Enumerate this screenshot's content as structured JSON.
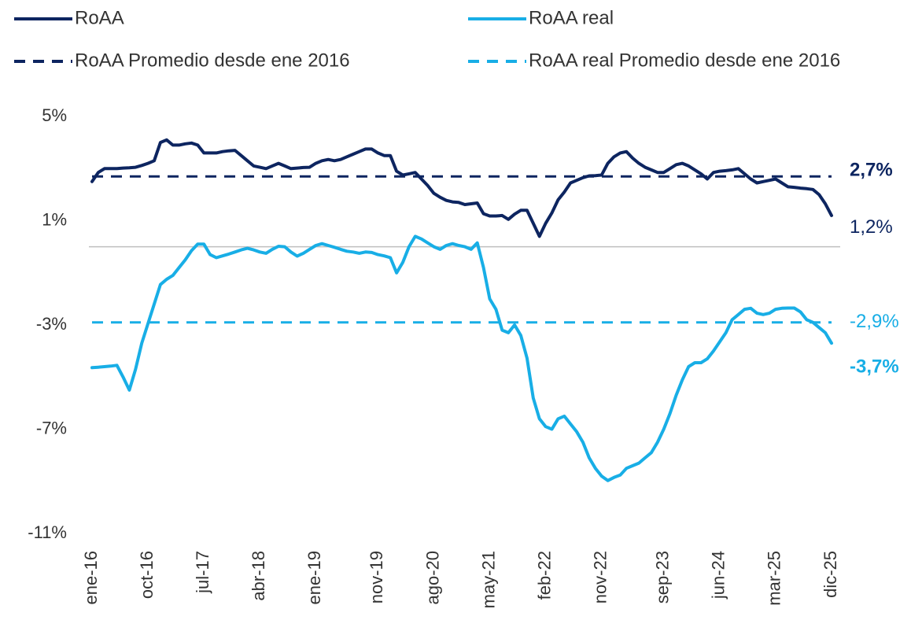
{
  "chart_data": {
    "type": "line",
    "categories": [
      "ene-16",
      null,
      null,
      null,
      null,
      null,
      null,
      null,
      null,
      "oct-16",
      null,
      null,
      null,
      null,
      null,
      null,
      null,
      null,
      "jul-17",
      null,
      null,
      null,
      null,
      null,
      null,
      null,
      null,
      "abr-18",
      null,
      null,
      null,
      null,
      null,
      null,
      null,
      null,
      "ene-19",
      null,
      null,
      null,
      null,
      null,
      null,
      null,
      null,
      null,
      "nov-19",
      null,
      null,
      null,
      null,
      null,
      null,
      null,
      null,
      "ago-20",
      null,
      null,
      null,
      null,
      null,
      null,
      null,
      null,
      "may-21",
      null,
      null,
      null,
      null,
      null,
      null,
      null,
      null,
      "feb-22",
      null,
      null,
      null,
      null,
      null,
      null,
      null,
      null,
      "nov-22",
      null,
      null,
      null,
      null,
      null,
      null,
      null,
      null,
      null,
      "sep-23",
      null,
      null,
      null,
      null,
      null,
      null,
      null,
      null,
      "jun-24",
      null,
      null,
      null,
      null,
      null,
      null,
      null,
      null,
      "mar-25",
      null,
      null,
      null,
      null,
      null,
      null,
      null,
      null,
      "dic-25"
    ],
    "series": [
      {
        "name": "RoAA",
        "color": "#0d2560",
        "label_bold": false,
        "values": [
          2.5,
          2.85,
          3.0,
          3.0,
          3.0,
          3.02,
          3.03,
          3.05,
          3.12,
          3.2,
          3.3,
          4.0,
          4.1,
          3.9,
          3.9,
          3.95,
          3.98,
          3.9,
          3.6,
          3.6,
          3.6,
          3.65,
          3.68,
          3.7,
          3.5,
          3.3,
          3.1,
          3.05,
          3.0,
          3.1,
          3.2,
          3.1,
          3.0,
          3.02,
          3.04,
          3.05,
          3.2,
          3.3,
          3.35,
          3.3,
          3.35,
          3.45,
          3.55,
          3.65,
          3.75,
          3.75,
          3.6,
          3.5,
          3.5,
          2.9,
          2.75,
          2.8,
          2.85,
          2.6,
          2.35,
          2.05,
          1.9,
          1.78,
          1.72,
          1.7,
          1.62,
          1.65,
          1.68,
          1.27,
          1.18,
          1.18,
          1.2,
          1.05,
          1.25,
          1.4,
          1.4,
          0.9,
          0.4,
          0.9,
          1.3,
          1.8,
          2.1,
          2.45,
          2.55,
          2.65,
          2.72,
          2.73,
          2.75,
          3.2,
          3.45,
          3.6,
          3.65,
          3.4,
          3.2,
          3.05,
          2.95,
          2.85,
          2.85,
          3.0,
          3.15,
          3.2,
          3.1,
          2.95,
          2.8,
          2.6,
          2.85,
          2.9,
          2.92,
          2.95,
          3.0,
          2.8,
          2.6,
          2.45,
          2.5,
          2.55,
          2.6,
          2.45,
          2.3,
          2.28,
          2.25,
          2.23,
          2.2,
          2.0,
          1.65,
          1.2
        ],
        "value_labels": [
          null,
          null,
          null,
          null,
          null,
          null,
          null,
          null,
          null,
          null,
          null,
          null,
          null,
          null,
          null,
          null,
          null,
          null,
          null,
          null,
          null,
          null,
          null,
          null,
          null,
          null,
          null,
          null,
          null,
          null,
          null,
          null,
          null,
          null,
          null,
          null,
          null,
          null,
          null,
          null,
          null,
          null,
          null,
          null,
          null,
          null,
          null,
          null,
          null,
          null,
          null,
          null,
          null,
          null,
          null,
          null,
          null,
          null,
          null,
          null,
          null,
          null,
          null,
          null,
          null,
          null,
          null,
          null,
          null,
          null,
          null,
          null,
          null,
          null,
          null,
          null,
          null,
          null,
          null,
          null,
          null,
          null,
          null,
          null,
          null,
          null,
          null,
          null,
          null,
          null,
          null,
          null,
          null,
          null,
          null,
          null,
          null,
          null,
          null,
          null,
          null,
          null,
          null,
          null,
          null,
          null,
          null,
          null,
          null,
          null,
          null,
          null,
          null,
          null,
          null,
          null,
          null,
          null,
          null,
          "1,2%"
        ]
      },
      {
        "name": "RoAA real",
        "color": "#18aee6",
        "label_bold": true,
        "values": [
          -4.64,
          -4.62,
          -4.6,
          -4.58,
          -4.55,
          -5.0,
          -5.5,
          -4.7,
          -3.7,
          -2.95,
          -2.2,
          -1.45,
          -1.25,
          -1.1,
          -0.8,
          -0.5,
          -0.15,
          0.1,
          0.1,
          -0.3,
          -0.42,
          -0.35,
          -0.28,
          -0.2,
          -0.12,
          -0.06,
          -0.12,
          -0.2,
          -0.25,
          -0.1,
          0.02,
          0.0,
          -0.2,
          -0.36,
          -0.25,
          -0.1,
          0.05,
          0.12,
          0.05,
          -0.02,
          -0.1,
          -0.17,
          -0.2,
          -0.25,
          -0.2,
          -0.22,
          -0.3,
          -0.35,
          -0.42,
          -1.0,
          -0.6,
          0.0,
          0.4,
          0.3,
          0.15,
          0.0,
          -0.1,
          0.05,
          0.12,
          0.05,
          0.0,
          -0.1,
          0.15,
          -0.8,
          -2.0,
          -2.4,
          -3.2,
          -3.3,
          -3.0,
          -3.4,
          -4.27,
          -5.8,
          -6.6,
          -6.9,
          -7.0,
          -6.6,
          -6.5,
          -6.8,
          -7.1,
          -7.5,
          -8.1,
          -8.5,
          -8.8,
          -8.97,
          -8.85,
          -8.76,
          -8.5,
          -8.4,
          -8.3,
          -8.1,
          -7.9,
          -7.5,
          -7.0,
          -6.4,
          -5.7,
          -5.1,
          -4.6,
          -4.45,
          -4.45,
          -4.3,
          -4.0,
          -3.65,
          -3.3,
          -2.8,
          -2.6,
          -2.4,
          -2.36,
          -2.55,
          -2.6,
          -2.55,
          -2.4,
          -2.36,
          -2.35,
          -2.35,
          -2.5,
          -2.8,
          -2.9,
          -3.1,
          -3.3,
          -3.7
        ],
        "value_labels": [
          null,
          null,
          null,
          null,
          null,
          null,
          null,
          null,
          null,
          null,
          null,
          null,
          null,
          null,
          null,
          null,
          null,
          null,
          null,
          null,
          null,
          null,
          null,
          null,
          null,
          null,
          null,
          null,
          null,
          null,
          null,
          null,
          null,
          null,
          null,
          null,
          null,
          null,
          null,
          null,
          null,
          null,
          null,
          null,
          null,
          null,
          null,
          null,
          null,
          null,
          null,
          null,
          null,
          null,
          null,
          null,
          null,
          null,
          null,
          null,
          null,
          null,
          null,
          null,
          null,
          null,
          null,
          null,
          null,
          null,
          null,
          null,
          null,
          null,
          null,
          null,
          null,
          null,
          null,
          null,
          null,
          null,
          null,
          null,
          null,
          null,
          null,
          null,
          null,
          null,
          null,
          null,
          null,
          null,
          null,
          null,
          null,
          null,
          null,
          null,
          null,
          null,
          null,
          null,
          null,
          null,
          null,
          null,
          null,
          null,
          null,
          null,
          null,
          null,
          null,
          null,
          null,
          null,
          null,
          "-3,7%"
        ]
      },
      {
        "name": "RoAA Promedio desde ene 2016",
        "color": "#0d2560",
        "dashed": true,
        "label_bold": true,
        "value": 2.7,
        "value_label": "2,7%"
      },
      {
        "name": "RoAA real Promedio desde ene 2016",
        "color": "#18aee6",
        "dashed": true,
        "label_bold": false,
        "value": -2.9,
        "value_label": "-2,9%"
      }
    ],
    "ylim": [
      -11,
      5
    ],
    "yticks": [
      {
        "value": 5,
        "label": "5%"
      },
      {
        "value": 1,
        "label": "1%"
      },
      {
        "value": -3,
        "label": "-3%"
      },
      {
        "value": -7,
        "label": "-7%"
      },
      {
        "value": -11,
        "label": "-11%"
      }
    ],
    "zero_line": true,
    "grid": false,
    "legend": "top"
  }
}
